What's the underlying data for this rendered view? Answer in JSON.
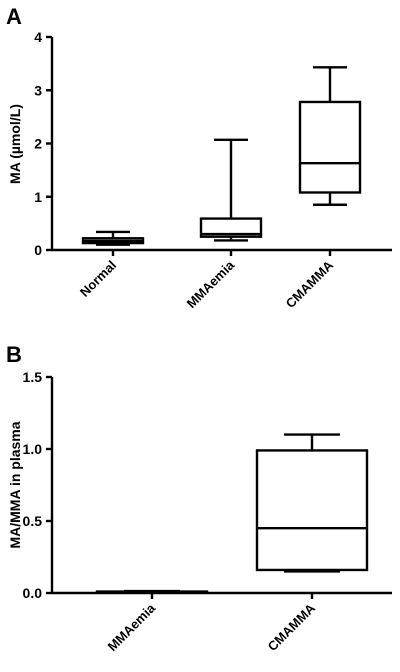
{
  "chart_data": [
    {
      "type": "box",
      "panel_label": "A",
      "ylabel": "MA (µmol/L)",
      "xlabel": "",
      "ylim": [
        0,
        4
      ],
      "yticks": [
        "0",
        "1",
        "2",
        "3",
        "4"
      ],
      "grid": false,
      "categories": [
        "Normal",
        "MMAemia",
        "CMAMMA"
      ],
      "boxes": [
        {
          "category": "Normal",
          "min": 0.1,
          "q1": 0.13,
          "median": 0.17,
          "q3": 0.22,
          "max": 0.34
        },
        {
          "category": "MMAemia",
          "min": 0.18,
          "q1": 0.25,
          "median": 0.3,
          "q3": 0.59,
          "max": 2.07
        },
        {
          "category": "CMAMMA",
          "min": 0.85,
          "q1": 1.08,
          "median": 1.63,
          "q3": 2.78,
          "max": 3.43
        }
      ]
    },
    {
      "type": "box",
      "panel_label": "B",
      "ylabel": "MA/MMA in plasma",
      "xlabel": "",
      "ylim": [
        0,
        1.5
      ],
      "yticks": [
        "0.0",
        "0.5",
        "1.0",
        "1.5"
      ],
      "grid": false,
      "categories": [
        "MMAemia",
        "CMAMMA"
      ],
      "boxes": [
        {
          "category": "MMAemia",
          "min": 0.004,
          "q1": 0.006,
          "median": 0.008,
          "q3": 0.01,
          "max": 0.013
        },
        {
          "category": "CMAMMA",
          "min": 0.15,
          "q1": 0.16,
          "median": 0.45,
          "q3": 0.99,
          "max": 1.1
        }
      ]
    }
  ]
}
